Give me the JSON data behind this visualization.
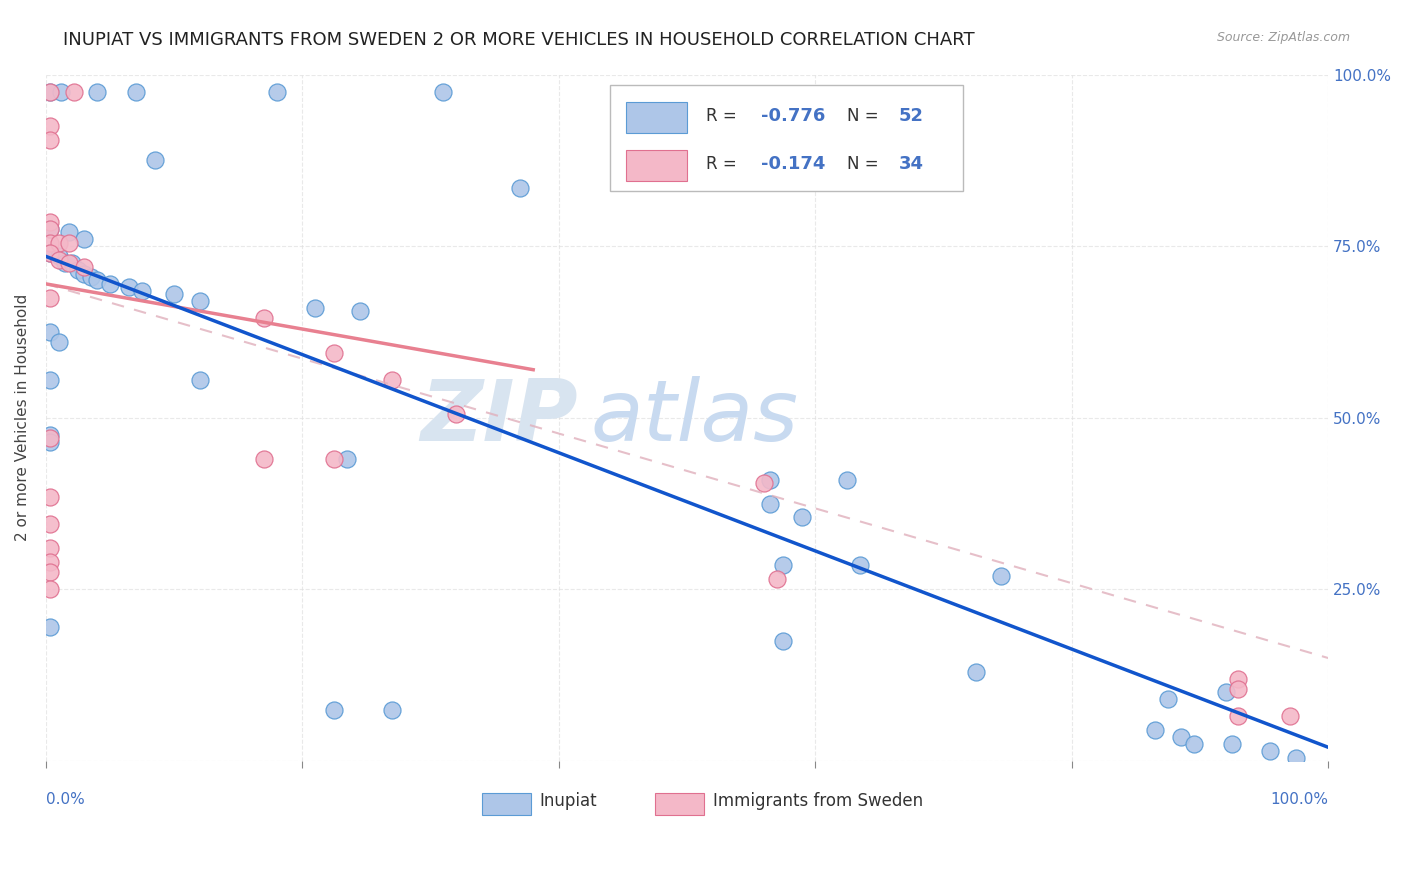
{
  "title": "INUPIAT VS IMMIGRANTS FROM SWEDEN 2 OR MORE VEHICLES IN HOUSEHOLD CORRELATION CHART",
  "source": "Source: ZipAtlas.com",
  "ylabel": "2 or more Vehicles in Household",
  "watermark_zip": "ZIP",
  "watermark_atlas": "atlas",
  "inupiat_color": "#aec6e8",
  "inupiat_edge_color": "#5b9bd5",
  "sweden_color": "#f4b8c8",
  "sweden_edge_color": "#e07090",
  "inupiat_line_color": "#1155cc",
  "sweden_line_color": "#e88090",
  "sweden_dash_color": "#e0b0bc",
  "inupiat_scatter": [
    [
      0.003,
      0.975
    ],
    [
      0.012,
      0.975
    ],
    [
      0.04,
      0.975
    ],
    [
      0.07,
      0.975
    ],
    [
      0.18,
      0.975
    ],
    [
      0.31,
      0.975
    ],
    [
      0.085,
      0.875
    ],
    [
      0.37,
      0.835
    ],
    [
      0.003,
      0.775
    ],
    [
      0.018,
      0.77
    ],
    [
      0.03,
      0.76
    ],
    [
      0.003,
      0.74
    ],
    [
      0.01,
      0.735
    ],
    [
      0.015,
      0.725
    ],
    [
      0.02,
      0.725
    ],
    [
      0.025,
      0.715
    ],
    [
      0.03,
      0.71
    ],
    [
      0.035,
      0.705
    ],
    [
      0.04,
      0.7
    ],
    [
      0.05,
      0.695
    ],
    [
      0.065,
      0.69
    ],
    [
      0.075,
      0.685
    ],
    [
      0.1,
      0.68
    ],
    [
      0.12,
      0.67
    ],
    [
      0.21,
      0.66
    ],
    [
      0.245,
      0.655
    ],
    [
      0.003,
      0.625
    ],
    [
      0.01,
      0.61
    ],
    [
      0.003,
      0.555
    ],
    [
      0.12,
      0.555
    ],
    [
      0.003,
      0.475
    ],
    [
      0.003,
      0.465
    ],
    [
      0.235,
      0.44
    ],
    [
      0.565,
      0.41
    ],
    [
      0.625,
      0.41
    ],
    [
      0.565,
      0.375
    ],
    [
      0.59,
      0.355
    ],
    [
      0.575,
      0.285
    ],
    [
      0.635,
      0.285
    ],
    [
      0.745,
      0.27
    ],
    [
      0.003,
      0.195
    ],
    [
      0.575,
      0.175
    ],
    [
      0.725,
      0.13
    ],
    [
      0.92,
      0.1
    ],
    [
      0.875,
      0.09
    ],
    [
      0.225,
      0.075
    ],
    [
      0.27,
      0.075
    ],
    [
      0.865,
      0.045
    ],
    [
      0.885,
      0.035
    ],
    [
      0.895,
      0.025
    ],
    [
      0.925,
      0.025
    ],
    [
      0.955,
      0.015
    ],
    [
      0.975,
      0.005
    ]
  ],
  "sweden_scatter": [
    [
      0.003,
      0.975
    ],
    [
      0.022,
      0.975
    ],
    [
      0.003,
      0.925
    ],
    [
      0.003,
      0.905
    ],
    [
      0.003,
      0.785
    ],
    [
      0.003,
      0.775
    ],
    [
      0.003,
      0.755
    ],
    [
      0.01,
      0.755
    ],
    [
      0.018,
      0.755
    ],
    [
      0.003,
      0.74
    ],
    [
      0.01,
      0.73
    ],
    [
      0.018,
      0.725
    ],
    [
      0.03,
      0.72
    ],
    [
      0.003,
      0.675
    ],
    [
      0.17,
      0.645
    ],
    [
      0.225,
      0.595
    ],
    [
      0.27,
      0.555
    ],
    [
      0.17,
      0.44
    ],
    [
      0.225,
      0.44
    ],
    [
      0.32,
      0.505
    ],
    [
      0.003,
      0.47
    ],
    [
      0.56,
      0.405
    ],
    [
      0.003,
      0.385
    ],
    [
      0.003,
      0.345
    ],
    [
      0.003,
      0.31
    ],
    [
      0.003,
      0.29
    ],
    [
      0.003,
      0.275
    ],
    [
      0.57,
      0.265
    ],
    [
      0.003,
      0.25
    ],
    [
      0.93,
      0.12
    ],
    [
      0.93,
      0.105
    ],
    [
      0.93,
      0.065
    ],
    [
      0.97,
      0.065
    ]
  ],
  "inupiat_line": [
    [
      0.0,
      0.735
    ],
    [
      1.0,
      0.02
    ]
  ],
  "sweden_line_solid": [
    [
      0.0,
      0.695
    ],
    [
      0.38,
      0.57
    ]
  ],
  "sweden_line_dashed": [
    [
      0.0,
      0.695
    ],
    [
      1.0,
      0.15
    ]
  ],
  "xlim": [
    0.0,
    1.0
  ],
  "ylim": [
    0.0,
    1.0
  ],
  "grid_color": "#e0e0e0",
  "background_color": "#ffffff",
  "title_fontsize": 13,
  "axis_label_color": "#4472c4",
  "watermark_color_zip": "#d8e4f0",
  "watermark_color_atlas": "#c8daf0"
}
